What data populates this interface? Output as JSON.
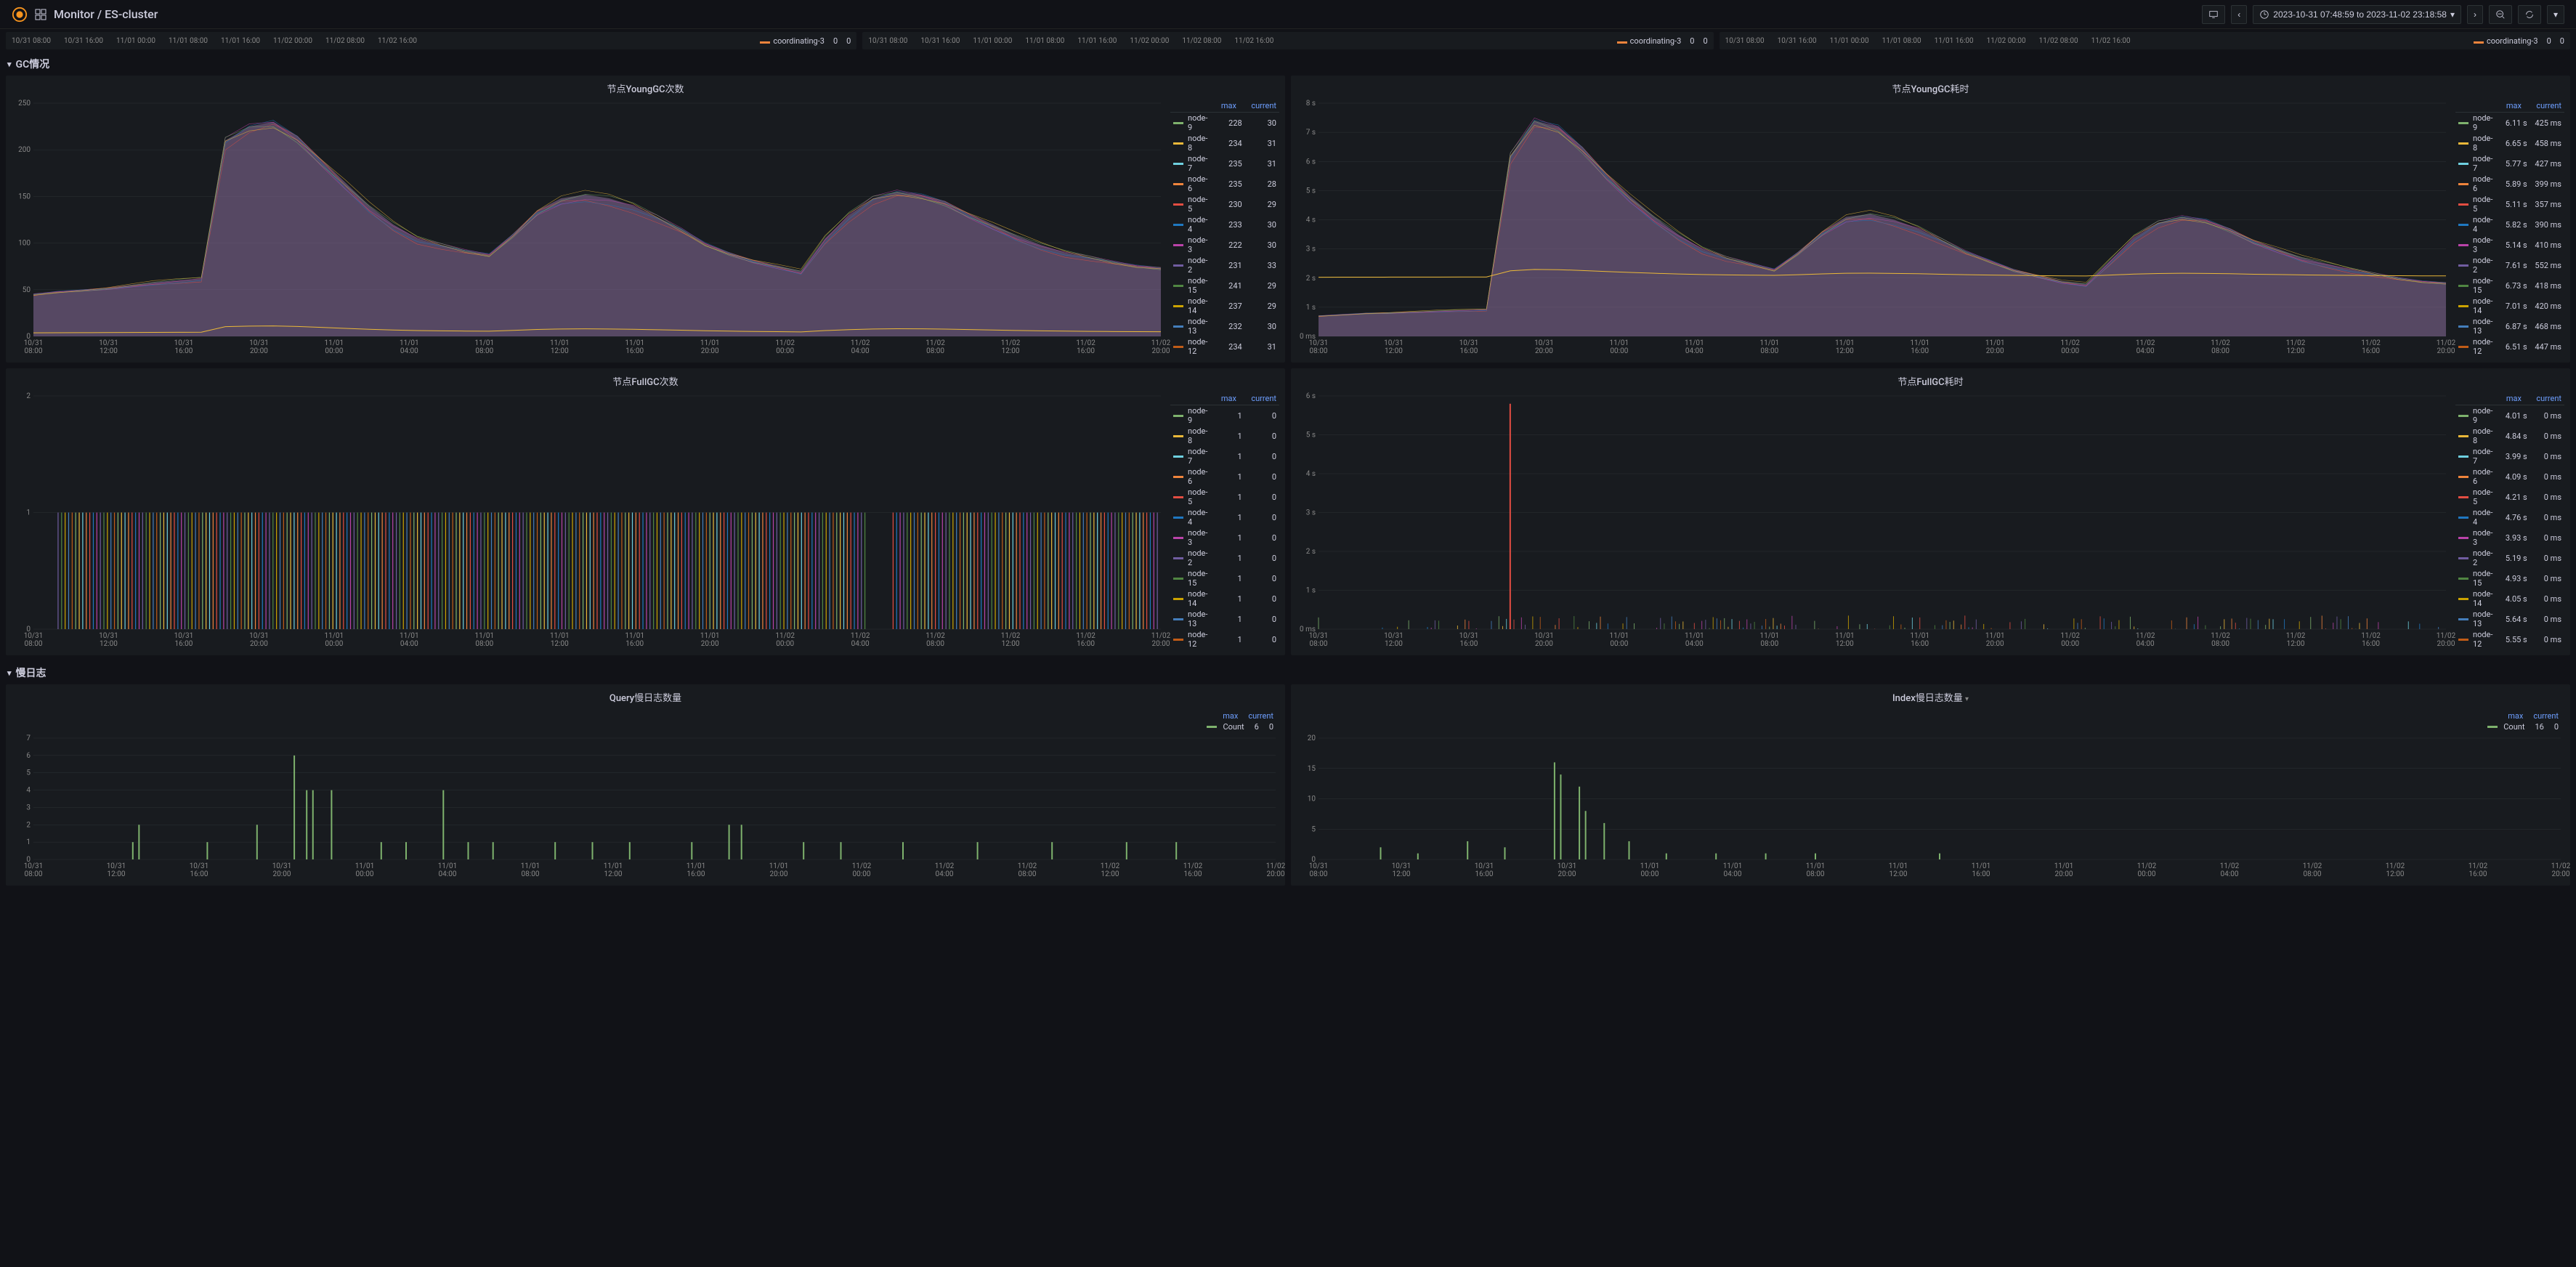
{
  "header": {
    "breadcrumb": "Monitor / ES-cluster",
    "time_range": "2023-10-31 07:48:59 to 2023-11-02 23:18:58"
  },
  "colors": {
    "bg": "#111217",
    "panel_bg": "#181b1f",
    "text": "#ccccdc",
    "grid": "#2c3235",
    "link": "#6e9fff"
  },
  "node_colors": {
    "node-9": "#7eb26d",
    "node-8": "#eab839",
    "node-7": "#6ed0e0",
    "node-6": "#ef843c",
    "node-5": "#e24d42",
    "node-4": "#1f78c1",
    "node-3": "#ba43a9",
    "node-2": "#705da0",
    "node-15": "#508642",
    "node-14": "#cca300",
    "node-13": "#447ebc",
    "node-12": "#c15c17",
    "coordinating-3": "#ef843c",
    "Count": "#7eb26d"
  },
  "mini_panels": [
    {
      "xaxis": [
        "10/31 08:00",
        "10/31 16:00",
        "11/01 00:00",
        "11/01 08:00",
        "11/01 16:00",
        "11/02 00:00",
        "11/02 08:00",
        "11/02 16:00"
      ],
      "series": "coordinating-3",
      "vals": [
        "0",
        "0"
      ]
    },
    {
      "xaxis": [
        "10/31 08:00",
        "10/31 16:00",
        "11/01 00:00",
        "11/01 08:00",
        "11/01 16:00",
        "11/02 00:00",
        "11/02 08:00",
        "11/02 16:00"
      ],
      "series": "coordinating-3",
      "vals": [
        "0",
        "0"
      ]
    },
    {
      "xaxis": [
        "10/31 08:00",
        "10/31 16:00",
        "11/01 00:00",
        "11/01 08:00",
        "11/01 16:00",
        "11/02 00:00",
        "11/02 08:00",
        "11/02 16:00"
      ],
      "series": "coordinating-3",
      "vals": [
        "0",
        "0"
      ]
    }
  ],
  "sections": {
    "gc": {
      "title": "GC情况"
    },
    "slowlog": {
      "title": "慢日志"
    }
  },
  "panels": {
    "younggc_count": {
      "title": "节点YoungGC次数",
      "type": "area-stacked",
      "ylim": [
        0,
        250
      ],
      "ytick_step": 50,
      "xaxis": [
        "10/31 08:00",
        "10/31 12:00",
        "10/31 16:00",
        "10/31 20:00",
        "11/01 00:00",
        "11/01 04:00",
        "11/01 08:00",
        "11/01 12:00",
        "11/01 16:00",
        "11/01 20:00",
        "11/02 00:00",
        "11/02 04:00",
        "11/02 08:00",
        "11/02 12:00",
        "11/02 16:00",
        "11/02 20:00"
      ],
      "legend_headers": [
        "max",
        "current"
      ],
      "legend": [
        {
          "name": "node-9",
          "max": "228",
          "current": "30"
        },
        {
          "name": "node-8",
          "max": "234",
          "current": "31"
        },
        {
          "name": "node-7",
          "max": "235",
          "current": "31"
        },
        {
          "name": "node-6",
          "max": "235",
          "current": "28"
        },
        {
          "name": "node-5",
          "max": "230",
          "current": "29"
        },
        {
          "name": "node-4",
          "max": "233",
          "current": "30"
        },
        {
          "name": "node-3",
          "max": "222",
          "current": "30"
        },
        {
          "name": "node-2",
          "max": "231",
          "current": "33"
        },
        {
          "name": "node-15",
          "max": "241",
          "current": "29"
        },
        {
          "name": "node-14",
          "max": "237",
          "current": "29"
        },
        {
          "name": "node-13",
          "max": "232",
          "current": "30"
        },
        {
          "name": "node-12",
          "max": "234",
          "current": "31"
        }
      ],
      "profile": [
        45,
        48,
        50,
        52,
        55,
        58,
        60,
        62,
        210,
        225,
        230,
        215,
        190,
        165,
        140,
        120,
        105,
        98,
        92,
        88,
        110,
        135,
        148,
        152,
        148,
        140,
        128,
        115,
        100,
        90,
        82,
        76,
        70,
        105,
        130,
        148,
        155,
        152,
        145,
        132,
        120,
        108,
        98,
        90,
        85,
        80,
        76,
        74
      ]
    },
    "younggc_time": {
      "title": "节点YoungGC耗时",
      "type": "area-stacked",
      "ylim": [
        0,
        8
      ],
      "ytick_step": 1,
      "yunit": "s",
      "ymin_label": "0 ms",
      "xaxis": [
        "10/31 08:00",
        "10/31 12:00",
        "10/31 16:00",
        "10/31 20:00",
        "11/01 00:00",
        "11/01 04:00",
        "11/01 08:00",
        "11/01 12:00",
        "11/01 16:00",
        "11/01 20:00",
        "11/02 00:00",
        "11/02 04:00",
        "11/02 08:00",
        "11/02 12:00",
        "11/02 16:00",
        "11/02 20:00"
      ],
      "legend_headers": [
        "max",
        "current"
      ],
      "legend": [
        {
          "name": "node-9",
          "max": "6.11 s",
          "current": "425 ms"
        },
        {
          "name": "node-8",
          "max": "6.65 s",
          "current": "458 ms"
        },
        {
          "name": "node-7",
          "max": "5.77 s",
          "current": "427 ms"
        },
        {
          "name": "node-6",
          "max": "5.89 s",
          "current": "399 ms"
        },
        {
          "name": "node-5",
          "max": "5.11 s",
          "current": "357 ms"
        },
        {
          "name": "node-4",
          "max": "5.82 s",
          "current": "390 ms"
        },
        {
          "name": "node-3",
          "max": "5.14 s",
          "current": "410 ms"
        },
        {
          "name": "node-2",
          "max": "7.61 s",
          "current": "552 ms"
        },
        {
          "name": "node-15",
          "max": "6.73 s",
          "current": "418 ms"
        },
        {
          "name": "node-14",
          "max": "7.01 s",
          "current": "420 ms"
        },
        {
          "name": "node-13",
          "max": "6.87 s",
          "current": "468 ms"
        },
        {
          "name": "node-12",
          "max": "6.51 s",
          "current": "447 ms"
        }
      ],
      "profile": [
        0.7,
        0.75,
        0.8,
        0.82,
        0.85,
        0.88,
        0.9,
        0.92,
        6.2,
        7.4,
        7.2,
        6.5,
        5.6,
        4.8,
        4.1,
        3.5,
        3.0,
        2.7,
        2.5,
        2.3,
        2.9,
        3.6,
        4.1,
        4.2,
        4.0,
        3.7,
        3.3,
        2.9,
        2.6,
        2.3,
        2.1,
        1.9,
        1.8,
        2.6,
        3.4,
        3.9,
        4.1,
        4.0,
        3.7,
        3.3,
        3.0,
        2.7,
        2.5,
        2.3,
        2.15,
        2.0,
        1.9,
        1.85
      ]
    },
    "fullgc_count": {
      "title": "节点FullGC次数",
      "type": "bars-dense",
      "ylim": [
        0,
        2
      ],
      "ytick_step": 1,
      "xaxis": [
        "10/31 08:00",
        "10/31 12:00",
        "10/31 16:00",
        "10/31 20:00",
        "11/01 00:00",
        "11/01 04:00",
        "11/01 08:00",
        "11/01 12:00",
        "11/01 16:00",
        "11/01 20:00",
        "11/02 00:00",
        "11/02 04:00",
        "11/02 08:00",
        "11/02 12:00",
        "11/02 16:00",
        "11/02 20:00"
      ],
      "legend_headers": [
        "max",
        "current"
      ],
      "legend": [
        {
          "name": "node-9",
          "max": "1",
          "current": "0"
        },
        {
          "name": "node-8",
          "max": "1",
          "current": "0"
        },
        {
          "name": "node-7",
          "max": "1",
          "current": "0"
        },
        {
          "name": "node-6",
          "max": "1",
          "current": "0"
        },
        {
          "name": "node-5",
          "max": "1",
          "current": "0"
        },
        {
          "name": "node-4",
          "max": "1",
          "current": "0"
        },
        {
          "name": "node-3",
          "max": "1",
          "current": "0"
        },
        {
          "name": "node-2",
          "max": "1",
          "current": "0"
        },
        {
          "name": "node-15",
          "max": "1",
          "current": "0"
        },
        {
          "name": "node-14",
          "max": "1",
          "current": "0"
        },
        {
          "name": "node-13",
          "max": "1",
          "current": "0"
        },
        {
          "name": "node-12",
          "max": "1",
          "current": "0"
        }
      ]
    },
    "fullgc_time": {
      "title": "节点FullGC耗时",
      "type": "bars-sparse-tall",
      "ylim": [
        0,
        6
      ],
      "ytick_step": 1,
      "yunit": "s",
      "ymin_label": "0 ms",
      "xaxis": [
        "10/31 08:00",
        "10/31 12:00",
        "10/31 16:00",
        "10/31 20:00",
        "11/01 00:00",
        "11/01 04:00",
        "11/01 08:00",
        "11/01 12:00",
        "11/01 16:00",
        "11/01 20:00",
        "11/02 00:00",
        "11/02 04:00",
        "11/02 08:00",
        "11/02 12:00",
        "11/02 16:00",
        "11/02 20:00"
      ],
      "legend_headers": [
        "max",
        "current"
      ],
      "legend": [
        {
          "name": "node-9",
          "max": "4.01 s",
          "current": "0 ms"
        },
        {
          "name": "node-8",
          "max": "4.84 s",
          "current": "0 ms"
        },
        {
          "name": "node-7",
          "max": "3.99 s",
          "current": "0 ms"
        },
        {
          "name": "node-6",
          "max": "4.09 s",
          "current": "0 ms"
        },
        {
          "name": "node-5",
          "max": "4.21 s",
          "current": "0 ms"
        },
        {
          "name": "node-4",
          "max": "4.76 s",
          "current": "0 ms"
        },
        {
          "name": "node-3",
          "max": "3.93 s",
          "current": "0 ms"
        },
        {
          "name": "node-2",
          "max": "5.19 s",
          "current": "0 ms"
        },
        {
          "name": "node-15",
          "max": "4.93 s",
          "current": "0 ms"
        },
        {
          "name": "node-14",
          "max": "4.05 s",
          "current": "0 ms"
        },
        {
          "name": "node-13",
          "max": "5.64 s",
          "current": "0 ms"
        },
        {
          "name": "node-12",
          "max": "5.55 s",
          "current": "0 ms"
        }
      ],
      "spike_at": 0.17,
      "spike_val": 5.8,
      "noise_height": 0.35
    },
    "query_slowlog": {
      "title": "Query慢日志数量",
      "type": "bars-sparse",
      "ylim": [
        0,
        7
      ],
      "ytick_step": 1,
      "xaxis": [
        "10/31 08:00",
        "10/31 12:00",
        "10/31 16:00",
        "10/31 20:00",
        "11/01 00:00",
        "11/01 04:00",
        "11/01 08:00",
        "11/01 12:00",
        "11/01 16:00",
        "11/01 20:00",
        "11/02 00:00",
        "11/02 04:00",
        "11/02 08:00",
        "11/02 12:00",
        "11/02 16:00",
        "11/02 20:00"
      ],
      "legend_headers": [
        "max",
        "current"
      ],
      "legend": [
        {
          "name": "Count",
          "max": "6",
          "current": "0"
        }
      ],
      "bars": [
        {
          "x": 0.08,
          "h": 1
        },
        {
          "x": 0.085,
          "h": 2
        },
        {
          "x": 0.14,
          "h": 1
        },
        {
          "x": 0.18,
          "h": 2
        },
        {
          "x": 0.21,
          "h": 6
        },
        {
          "x": 0.22,
          "h": 4
        },
        {
          "x": 0.225,
          "h": 4
        },
        {
          "x": 0.24,
          "h": 4
        },
        {
          "x": 0.28,
          "h": 1
        },
        {
          "x": 0.3,
          "h": 1
        },
        {
          "x": 0.33,
          "h": 4
        },
        {
          "x": 0.35,
          "h": 1
        },
        {
          "x": 0.37,
          "h": 1
        },
        {
          "x": 0.42,
          "h": 1
        },
        {
          "x": 0.45,
          "h": 1
        },
        {
          "x": 0.48,
          "h": 1
        },
        {
          "x": 0.53,
          "h": 1
        },
        {
          "x": 0.56,
          "h": 2
        },
        {
          "x": 0.57,
          "h": 2
        },
        {
          "x": 0.62,
          "h": 1
        },
        {
          "x": 0.65,
          "h": 1
        },
        {
          "x": 0.7,
          "h": 1
        },
        {
          "x": 0.76,
          "h": 1
        },
        {
          "x": 0.82,
          "h": 1
        },
        {
          "x": 0.88,
          "h": 1
        },
        {
          "x": 0.92,
          "h": 1
        }
      ]
    },
    "index_slowlog": {
      "title": "Index慢日志数量",
      "type": "bars-sparse",
      "ylim": [
        0,
        20
      ],
      "ytick_step": 5,
      "xaxis": [
        "10/31 08:00",
        "10/31 12:00",
        "10/31 16:00",
        "10/31 20:00",
        "11/01 00:00",
        "11/01 04:00",
        "11/01 08:00",
        "11/01 12:00",
        "11/01 16:00",
        "11/01 20:00",
        "11/02 00:00",
        "11/02 04:00",
        "11/02 08:00",
        "11/02 12:00",
        "11/02 16:00",
        "11/02 20:00"
      ],
      "legend_headers": [
        "max",
        "current"
      ],
      "legend": [
        {
          "name": "Count",
          "max": "16",
          "current": "0"
        }
      ],
      "bars": [
        {
          "x": 0.05,
          "h": 2
        },
        {
          "x": 0.08,
          "h": 1
        },
        {
          "x": 0.12,
          "h": 3
        },
        {
          "x": 0.15,
          "h": 2
        },
        {
          "x": 0.19,
          "h": 16
        },
        {
          "x": 0.195,
          "h": 14
        },
        {
          "x": 0.21,
          "h": 12
        },
        {
          "x": 0.215,
          "h": 8
        },
        {
          "x": 0.23,
          "h": 6
        },
        {
          "x": 0.25,
          "h": 3
        },
        {
          "x": 0.28,
          "h": 1
        },
        {
          "x": 0.32,
          "h": 1
        },
        {
          "x": 0.36,
          "h": 1
        },
        {
          "x": 0.4,
          "h": 1
        },
        {
          "x": 0.5,
          "h": 1
        }
      ]
    }
  }
}
